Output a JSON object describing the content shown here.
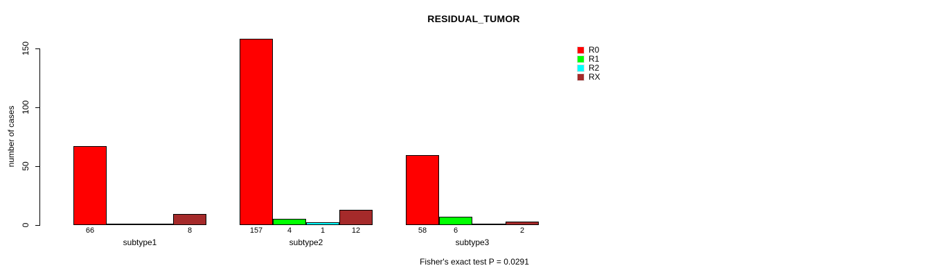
{
  "title": "RESIDUAL_TUMOR",
  "footnote": "Fisher's exact test P = 0.0291",
  "chart_data": {
    "type": "bar",
    "grouped": true,
    "title": "RESIDUAL_TUMOR",
    "xlabel": "",
    "ylabel": "number of cases",
    "categories": [
      "subtype1",
      "subtype2",
      "subtype3"
    ],
    "series": [
      {
        "name": "R0",
        "color": "#FF0000",
        "values": [
          66,
          157,
          58
        ]
      },
      {
        "name": "R1",
        "color": "#00FF00",
        "values": [
          0,
          4,
          6
        ]
      },
      {
        "name": "R2",
        "color": "#00FFFF",
        "values": [
          0,
          1,
          0
        ]
      },
      {
        "name": "RX",
        "color": "#A52A2A",
        "values": [
          8,
          12,
          2
        ]
      }
    ],
    "bar_value_labels": {
      "subtype1": [
        66,
        null,
        null,
        8
      ],
      "subtype2": [
        157,
        4,
        1,
        12
      ],
      "subtype3": [
        58,
        6,
        null,
        2
      ]
    },
    "yticks": [
      0,
      50,
      100,
      150
    ],
    "ylim": [
      0,
      157
    ],
    "grid": false,
    "legend_position": "top-right",
    "legend_entries": [
      "R0",
      "R1",
      "R2",
      "RX"
    ],
    "footnote": "Fisher's exact test P = 0.0291"
  }
}
